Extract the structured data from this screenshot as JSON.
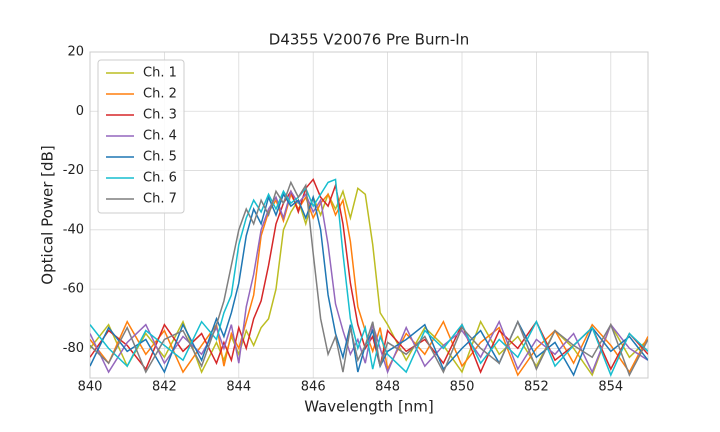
{
  "chart_data": {
    "type": "line",
    "title": "D4355 V20076 Pre Burn-In",
    "x_label": "Wavelength [nm]",
    "y_label": "Optical Power [dB]",
    "x": [
      840,
      840.5,
      841,
      841.5,
      842,
      842.5,
      843,
      843.4,
      843.6,
      843.8,
      844,
      844.2,
      844.4,
      844.6,
      844.8,
      845,
      845.2,
      845.4,
      845.6,
      845.8,
      846,
      846.2,
      846.4,
      846.6,
      846.8,
      847,
      847.2,
      847.4,
      847.6,
      847.8,
      848,
      848.5,
      849,
      849.5,
      850,
      850.5,
      851,
      851.5,
      852,
      852.5,
      853,
      853.5,
      854,
      854.5,
      855
    ],
    "series": [
      {
        "name": "Ch. 1",
        "color": "#bcbd22",
        "values": [
          -80,
          -72,
          -86,
          -75,
          -83,
          -71,
          -88,
          -78,
          -84,
          -76,
          -82,
          -74,
          -79,
          -73,
          -70,
          -60,
          -40,
          -34,
          -30,
          -38,
          -29,
          -35,
          -28,
          -33,
          -27,
          -36,
          -26,
          -28,
          -45,
          -68,
          -72,
          -84,
          -73,
          -79,
          -88,
          -71,
          -82,
          -76,
          -86,
          -74,
          -80,
          -89,
          -72,
          -83,
          -77
        ]
      },
      {
        "name": "Ch. 2",
        "color": "#ff7f0e",
        "values": [
          -77,
          -85,
          -71,
          -82,
          -74,
          -88,
          -79,
          -72,
          -86,
          -75,
          -80,
          -71,
          -62,
          -42,
          -34,
          -30,
          -37,
          -28,
          -33,
          -29,
          -36,
          -31,
          -28,
          -35,
          -30,
          -44,
          -66,
          -74,
          -81,
          -73,
          -87,
          -75,
          -82,
          -71,
          -86,
          -78,
          -73,
          -89,
          -80,
          -74,
          -85,
          -72,
          -79,
          -88,
          -76
        ]
      },
      {
        "name": "Ch. 3",
        "color": "#d62728",
        "values": [
          -83,
          -74,
          -79,
          -87,
          -72,
          -81,
          -75,
          -85,
          -78,
          -84,
          -73,
          -80,
          -70,
          -64,
          -52,
          -38,
          -31,
          -27,
          -34,
          -26,
          -23,
          -29,
          -32,
          -25,
          -38,
          -58,
          -72,
          -80,
          -76,
          -86,
          -74,
          -81,
          -77,
          -85,
          -72,
          -88,
          -74,
          -80,
          -71,
          -84,
          -79,
          -73,
          -87,
          -75,
          -82
        ]
      },
      {
        "name": "Ch. 4",
        "color": "#9467bd",
        "values": [
          -75,
          -88,
          -78,
          -72,
          -85,
          -76,
          -82,
          -73,
          -80,
          -72,
          -85,
          -66,
          -55,
          -40,
          -33,
          -29,
          -36,
          -27,
          -31,
          -28,
          -34,
          -30,
          -45,
          -65,
          -74,
          -82,
          -77,
          -85,
          -72,
          -80,
          -88,
          -73,
          -86,
          -79,
          -74,
          -83,
          -71,
          -87,
          -77,
          -82,
          -75,
          -88,
          -72,
          -80,
          -84
        ]
      },
      {
        "name": "Ch. 5",
        "color": "#1f77b4",
        "values": [
          -86,
          -73,
          -81,
          -77,
          -88,
          -72,
          -84,
          -70,
          -76,
          -68,
          -58,
          -42,
          -33,
          -38,
          -29,
          -35,
          -28,
          -32,
          -30,
          -36,
          -29,
          -40,
          -62,
          -75,
          -83,
          -72,
          -88,
          -79,
          -74,
          -86,
          -81,
          -77,
          -72,
          -87,
          -80,
          -74,
          -85,
          -71,
          -83,
          -78,
          -89,
          -73,
          -81,
          -76,
          -84
        ]
      },
      {
        "name": "Ch. 6",
        "color": "#17becf",
        "values": [
          -72,
          -80,
          -86,
          -74,
          -79,
          -84,
          -71,
          -77,
          -68,
          -62,
          -45,
          -36,
          -30,
          -34,
          -28,
          -33,
          -27,
          -31,
          -29,
          -26,
          -32,
          -28,
          -24,
          -23,
          -48,
          -70,
          -80,
          -73,
          -87,
          -76,
          -82,
          -88,
          -74,
          -80,
          -72,
          -85,
          -77,
          -83,
          -71,
          -86,
          -79,
          -73,
          -89,
          -75,
          -81
        ]
      },
      {
        "name": "Ch. 7",
        "color": "#7f7f7f",
        "values": [
          -79,
          -85,
          -73,
          -88,
          -77,
          -74,
          -86,
          -72,
          -64,
          -52,
          -40,
          -33,
          -38,
          -30,
          -35,
          -27,
          -31,
          -24,
          -29,
          -25,
          -48,
          -70,
          -82,
          -76,
          -88,
          -73,
          -84,
          -79,
          -71,
          -86,
          -78,
          -82,
          -76,
          -88,
          -73,
          -80,
          -85,
          -71,
          -87,
          -74,
          -79,
          -83,
          -72,
          -89,
          -77
        ]
      }
    ],
    "xlim": [
      840,
      855
    ],
    "ylim": [
      -90,
      20
    ],
    "xticks": [
      840,
      842,
      844,
      846,
      848,
      850,
      852,
      854
    ],
    "yticks": [
      -80,
      -60,
      -40,
      -20,
      0,
      20
    ],
    "grid": true,
    "legend": "upper left"
  }
}
